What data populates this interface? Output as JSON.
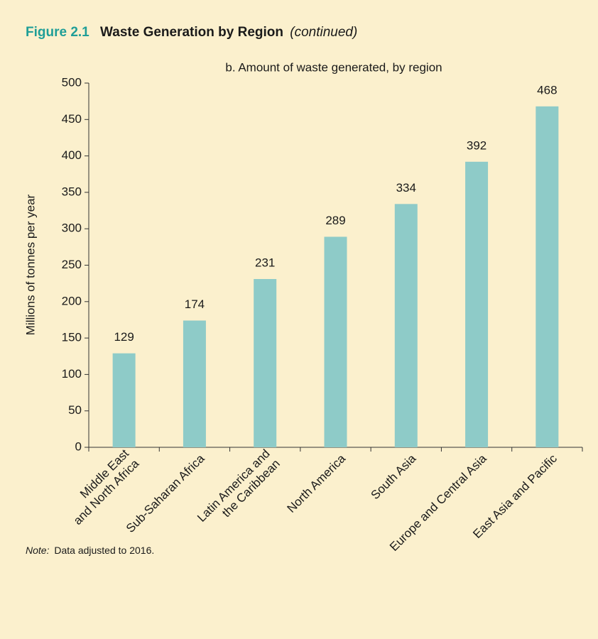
{
  "chart_data": {
    "type": "bar",
    "figure_number": "Figure 2.1",
    "title": "Waste Generation by Region",
    "title_suffix": "(continued)",
    "subtitle": "b. Amount of waste generated, by region",
    "y_label": "Millions of tonnes per year",
    "categories": [
      "Middle East\nand North Africa",
      "Sub-Saharan Africa",
      "Latin America and\nthe Caribbean",
      "North America",
      "South Asia",
      "Europe and Central Asia",
      "East Asia and Pacific"
    ],
    "values": [
      129,
      174,
      231,
      289,
      334,
      392,
      468
    ],
    "color": "#8ecbc8",
    "ylim": [
      0,
      500
    ],
    "yticks": [
      0,
      50,
      100,
      150,
      200,
      250,
      300,
      350,
      400,
      450,
      500
    ],
    "note_label": "Note:",
    "note": "Data adjusted to 2016."
  }
}
